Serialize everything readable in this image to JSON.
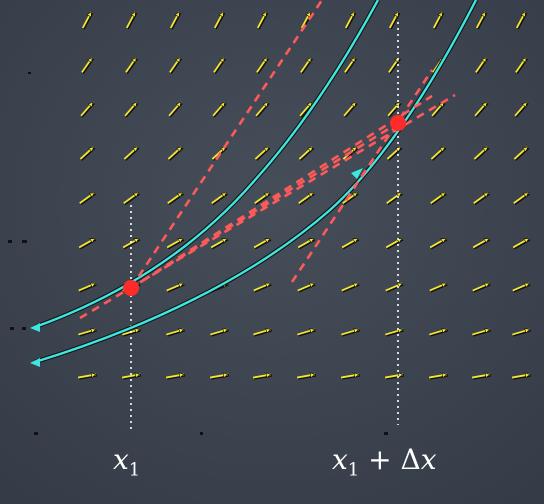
{
  "labels": {
    "x1": {
      "var": "x",
      "sub": "1"
    },
    "x1_plus_dx": {
      "var": "x",
      "sub": "1",
      "op": " + Δ",
      "var2": "x"
    }
  },
  "colors": {
    "background": "#3d4551",
    "arrow": "#f5e630",
    "curve": "#3ee6e0",
    "secant": "#ff5a5a",
    "point": "#ff2a2a",
    "guide": "#ffffff"
  },
  "icons": {
    "arrow": "slope-arrow-icon"
  }
}
